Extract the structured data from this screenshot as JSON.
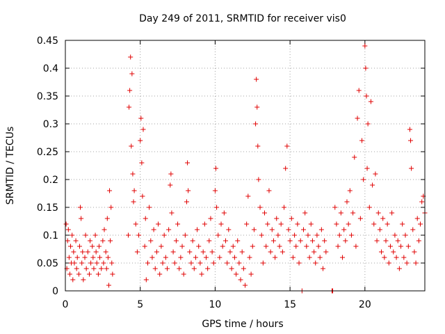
{
  "chart_data": {
    "type": "scatter",
    "title": "Day 249 of 2011, SRMTID for receiver vis0",
    "xlabel": "GPS time / hours",
    "ylabel": "SRMTID / TECUs",
    "xlim": [
      0,
      24
    ],
    "ylim": [
      0,
      0.45
    ],
    "x_ticks": [
      0,
      5,
      10,
      15,
      20
    ],
    "x_tick_labels": [
      "0",
      "5",
      "10",
      "15",
      "20"
    ],
    "y_ticks": [
      0,
      0.05,
      0.1,
      0.15,
      0.2,
      0.25,
      0.3,
      0.35,
      0.4,
      0.45
    ],
    "y_tick_labels": [
      "0",
      "0.05",
      "0.1",
      "0.15",
      "0.2",
      "0.25",
      "0.3",
      "0.35",
      "0.4",
      "0.45"
    ],
    "grid": true,
    "marker": "plus",
    "marker_color": "#e00000",
    "series": [
      {
        "name": "vis0",
        "points": [
          [
            0.05,
            0.12
          ],
          [
            0.1,
            0.04
          ],
          [
            0.15,
            0.09
          ],
          [
            0.2,
            0.11
          ],
          [
            0.25,
            0.06
          ],
          [
            0.3,
            0.03
          ],
          [
            0.35,
            0.08
          ],
          [
            0.4,
            0.05
          ],
          [
            0.45,
            0.1
          ],
          [
            0.5,
            0.02
          ],
          [
            0.55,
            0.07
          ],
          [
            0.6,
            0.05
          ],
          [
            0.7,
            0.09
          ],
          [
            0.75,
            0.04
          ],
          [
            0.8,
            0.06
          ],
          [
            0.9,
            0.03
          ],
          [
            0.95,
            0.08
          ],
          [
            1.0,
            0.15
          ],
          [
            1.05,
            0.13
          ],
          [
            1.1,
            0.05
          ],
          [
            1.15,
            0.07
          ],
          [
            1.2,
            0.02
          ],
          [
            1.3,
            0.06
          ],
          [
            1.35,
            0.1
          ],
          [
            1.4,
            0.04
          ],
          [
            1.5,
            0.07
          ],
          [
            1.6,
            0.03
          ],
          [
            1.65,
            0.09
          ],
          [
            1.7,
            0.05
          ],
          [
            1.8,
            0.08
          ],
          [
            1.85,
            0.06
          ],
          [
            1.9,
            0.04
          ],
          [
            2.0,
            0.1
          ],
          [
            2.05,
            0.07
          ],
          [
            2.1,
            0.05
          ],
          [
            2.2,
            0.03
          ],
          [
            2.25,
            0.08
          ],
          [
            2.3,
            0.06
          ],
          [
            2.4,
            0.04
          ],
          [
            2.5,
            0.09
          ],
          [
            2.55,
            0.05
          ],
          [
            2.6,
            0.11
          ],
          [
            2.7,
            0.07
          ],
          [
            2.75,
            0.04
          ],
          [
            2.8,
            0.13
          ],
          [
            2.85,
            0.06
          ],
          [
            2.9,
            0.01
          ],
          [
            2.95,
            0.18
          ],
          [
            3.0,
            0.09
          ],
          [
            3.05,
            0.15
          ],
          [
            3.1,
            0.05
          ],
          [
            3.15,
            0.03
          ],
          [
            4.2,
            0.1
          ],
          [
            4.25,
            0.33
          ],
          [
            4.3,
            0.36
          ],
          [
            4.35,
            0.42
          ],
          [
            4.4,
            0.26
          ],
          [
            4.45,
            0.39
          ],
          [
            4.5,
            0.21
          ],
          [
            4.55,
            0.16
          ],
          [
            4.6,
            0.18
          ],
          [
            4.7,
            0.12
          ],
          [
            4.8,
            0.07
          ],
          [
            4.9,
            0.1
          ],
          [
            5.0,
            0.27
          ],
          [
            5.05,
            0.31
          ],
          [
            5.1,
            0.23
          ],
          [
            5.15,
            0.17
          ],
          [
            5.2,
            0.29
          ],
          [
            5.3,
            0.08
          ],
          [
            5.35,
            0.13
          ],
          [
            5.4,
            0.02
          ],
          [
            5.5,
            0.05
          ],
          [
            5.6,
            0.15
          ],
          [
            5.7,
            0.09
          ],
          [
            5.8,
            0.06
          ],
          [
            5.9,
            0.11
          ],
          [
            6.0,
            0.04
          ],
          [
            6.1,
            0.07
          ],
          [
            6.2,
            0.12
          ],
          [
            6.3,
            0.03
          ],
          [
            6.4,
            0.08
          ],
          [
            6.5,
            0.05
          ],
          [
            6.6,
            0.1
          ],
          [
            6.7,
            0.06
          ],
          [
            6.8,
            0.04
          ],
          [
            6.9,
            0.11
          ],
          [
            7.0,
            0.19
          ],
          [
            7.05,
            0.21
          ],
          [
            7.1,
            0.14
          ],
          [
            7.2,
            0.07
          ],
          [
            7.3,
            0.05
          ],
          [
            7.4,
            0.09
          ],
          [
            7.5,
            0.12
          ],
          [
            7.6,
            0.04
          ],
          [
            7.7,
            0.06
          ],
          [
            7.8,
            0.08
          ],
          [
            7.9,
            0.03
          ],
          [
            8.0,
            0.1
          ],
          [
            8.1,
            0.16
          ],
          [
            8.15,
            0.23
          ],
          [
            8.2,
            0.18
          ],
          [
            8.3,
            0.07
          ],
          [
            8.4,
            0.05
          ],
          [
            8.5,
            0.09
          ],
          [
            8.6,
            0.04
          ],
          [
            8.7,
            0.06
          ],
          [
            8.8,
            0.11
          ],
          [
            8.9,
            0.08
          ],
          [
            9.0,
            0.05
          ],
          [
            9.1,
            0.03
          ],
          [
            9.2,
            0.07
          ],
          [
            9.3,
            0.12
          ],
          [
            9.4,
            0.06
          ],
          [
            9.5,
            0.04
          ],
          [
            9.6,
            0.09
          ],
          [
            9.7,
            0.13
          ],
          [
            9.8,
            0.07
          ],
          [
            9.9,
            0.05
          ],
          [
            10.0,
            0.18
          ],
          [
            10.05,
            0.22
          ],
          [
            10.1,
            0.15
          ],
          [
            10.2,
            0.1
          ],
          [
            10.3,
            0.06
          ],
          [
            10.4,
            0.12
          ],
          [
            10.5,
            0.08
          ],
          [
            10.6,
            0.14
          ],
          [
            10.7,
            0.09
          ],
          [
            10.8,
            0.05
          ],
          [
            10.9,
            0.11
          ],
          [
            11.0,
            0.07
          ],
          [
            11.1,
            0.04
          ],
          [
            11.2,
            0.08
          ],
          [
            11.3,
            0.06
          ],
          [
            11.4,
            0.03
          ],
          [
            11.5,
            0.09
          ],
          [
            11.6,
            0.05
          ],
          [
            11.7,
            0.02
          ],
          [
            11.8,
            0.07
          ],
          [
            11.9,
            0.04
          ],
          [
            12.0,
            0.01
          ],
          [
            12.1,
            0.12
          ],
          [
            12.2,
            0.17
          ],
          [
            12.3,
            0.06
          ],
          [
            12.4,
            0.03
          ],
          [
            12.5,
            0.08
          ],
          [
            12.6,
            0.11
          ],
          [
            12.7,
            0.3
          ],
          [
            12.75,
            0.38
          ],
          [
            12.8,
            0.33
          ],
          [
            12.85,
            0.26
          ],
          [
            12.9,
            0.2
          ],
          [
            13.0,
            0.15
          ],
          [
            13.1,
            0.1
          ],
          [
            13.2,
            0.05
          ],
          [
            13.3,
            0.14
          ],
          [
            13.4,
            0.08
          ],
          [
            13.5,
            0.12
          ],
          [
            13.6,
            0.18
          ],
          [
            13.7,
            0.07
          ],
          [
            13.8,
            0.11
          ],
          [
            13.9,
            0.09
          ],
          [
            14.0,
            0.06
          ],
          [
            14.1,
            0.13
          ],
          [
            14.2,
            0.1
          ],
          [
            14.3,
            0.08
          ],
          [
            14.4,
            0.12
          ],
          [
            14.5,
            0.07
          ],
          [
            14.6,
            0.15
          ],
          [
            14.7,
            0.22
          ],
          [
            14.8,
            0.26
          ],
          [
            14.9,
            0.11
          ],
          [
            15.0,
            0.09
          ],
          [
            15.1,
            0.13
          ],
          [
            15.2,
            0.06
          ],
          [
            15.3,
            0.1
          ],
          [
            15.4,
            0.08
          ],
          [
            15.5,
            0.12
          ],
          [
            15.6,
            0.05
          ],
          [
            15.7,
            0.09
          ],
          [
            15.8,
            0.0
          ],
          [
            15.9,
            0.11
          ],
          [
            16.0,
            0.14
          ],
          [
            16.1,
            0.08
          ],
          [
            16.2,
            0.1
          ],
          [
            16.3,
            0.06
          ],
          [
            16.4,
            0.12
          ],
          [
            16.5,
            0.09
          ],
          [
            16.6,
            0.07
          ],
          [
            16.7,
            0.05
          ],
          [
            16.8,
            0.1
          ],
          [
            16.9,
            0.08
          ],
          [
            17.0,
            0.06
          ],
          [
            17.1,
            0.11
          ],
          [
            17.2,
            0.04
          ],
          [
            17.3,
            0.09
          ],
          [
            17.4,
            0.07
          ],
          [
            17.8,
            0.0
          ],
          [
            17.85,
            0.0
          ],
          [
            18.0,
            0.15
          ],
          [
            18.1,
            0.12
          ],
          [
            18.2,
            0.08
          ],
          [
            18.3,
            0.1
          ],
          [
            18.4,
            0.14
          ],
          [
            18.5,
            0.06
          ],
          [
            18.6,
            0.11
          ],
          [
            18.7,
            0.09
          ],
          [
            18.8,
            0.16
          ],
          [
            18.9,
            0.12
          ],
          [
            19.0,
            0.18
          ],
          [
            19.1,
            0.1
          ],
          [
            19.2,
            0.14
          ],
          [
            19.3,
            0.24
          ],
          [
            19.4,
            0.08
          ],
          [
            19.5,
            0.31
          ],
          [
            19.6,
            0.36
          ],
          [
            19.7,
            0.13
          ],
          [
            19.8,
            0.27
          ],
          [
            19.9,
            0.2
          ],
          [
            20.0,
            0.44
          ],
          [
            20.05,
            0.4
          ],
          [
            20.1,
            0.35
          ],
          [
            20.15,
            0.22
          ],
          [
            20.2,
            0.3
          ],
          [
            20.3,
            0.15
          ],
          [
            20.4,
            0.34
          ],
          [
            20.5,
            0.19
          ],
          [
            20.6,
            0.12
          ],
          [
            20.7,
            0.21
          ],
          [
            20.8,
            0.09
          ],
          [
            20.9,
            0.14
          ],
          [
            21.0,
            0.11
          ],
          [
            21.1,
            0.07
          ],
          [
            21.2,
            0.13
          ],
          [
            21.3,
            0.06
          ],
          [
            21.4,
            0.09
          ],
          [
            21.5,
            0.12
          ],
          [
            21.6,
            0.05
          ],
          [
            21.7,
            0.08
          ],
          [
            21.8,
            0.14
          ],
          [
            21.9,
            0.07
          ],
          [
            22.0,
            0.1
          ],
          [
            22.1,
            0.06
          ],
          [
            22.2,
            0.09
          ],
          [
            22.3,
            0.04
          ],
          [
            22.4,
            0.08
          ],
          [
            22.5,
            0.12
          ],
          [
            22.6,
            0.06
          ],
          [
            22.7,
            0.1
          ],
          [
            22.8,
            0.05
          ],
          [
            22.9,
            0.08
          ],
          [
            23.0,
            0.29
          ],
          [
            23.05,
            0.27
          ],
          [
            23.1,
            0.22
          ],
          [
            23.2,
            0.11
          ],
          [
            23.3,
            0.07
          ],
          [
            23.4,
            0.05
          ],
          [
            23.5,
            0.13
          ],
          [
            23.6,
            0.09
          ],
          [
            23.7,
            0.12
          ],
          [
            23.8,
            0.16
          ],
          [
            23.9,
            0.17
          ],
          [
            24.0,
            0.14
          ]
        ]
      }
    ]
  }
}
